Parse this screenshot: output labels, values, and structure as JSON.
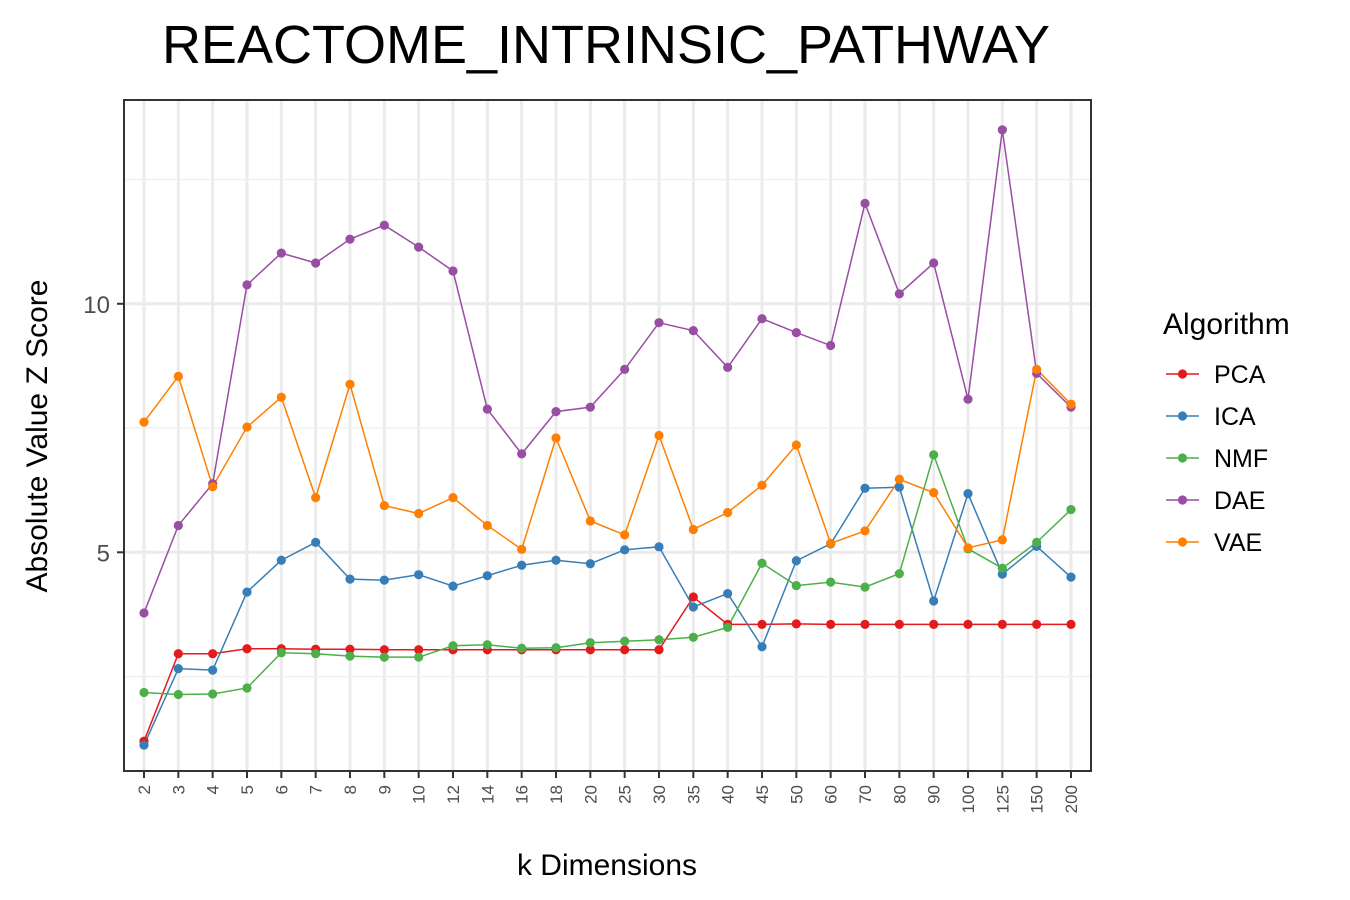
{
  "chart_data": {
    "type": "line",
    "title": "REACTOME_INTRINSIC_PATHWAY",
    "xlabel": "k Dimensions",
    "ylabel": "Absolute Value Z Score",
    "categories": [
      "2",
      "3",
      "4",
      "5",
      "6",
      "7",
      "8",
      "9",
      "10",
      "12",
      "14",
      "16",
      "18",
      "20",
      "25",
      "30",
      "35",
      "40",
      "45",
      "50",
      "60",
      "70",
      "80",
      "90",
      "100",
      "125",
      "150",
      "200"
    ],
    "yticks": [
      5,
      10
    ],
    "ylim": [
      0.6,
      14.1
    ],
    "grid": true,
    "legend_title": "Algorithm",
    "legend_position": "right",
    "series": [
      {
        "name": "PCA",
        "color": "#e41a1c",
        "values": [
          1.2,
          2.96,
          2.96,
          3.06,
          3.06,
          3.05,
          3.05,
          3.04,
          3.04,
          3.04,
          3.04,
          3.04,
          3.04,
          3.04,
          3.04,
          3.04,
          4.1,
          3.55,
          3.55,
          3.56,
          3.55,
          3.55,
          3.55,
          3.55,
          3.55,
          3.55,
          3.55,
          3.55
        ]
      },
      {
        "name": "ICA",
        "color": "#377eb8",
        "values": [
          1.12,
          2.66,
          2.63,
          4.2,
          4.84,
          5.2,
          4.46,
          4.44,
          4.55,
          4.32,
          4.53,
          4.74,
          4.84,
          4.77,
          5.05,
          5.11,
          3.9,
          4.17,
          3.1,
          4.83,
          5.17,
          6.29,
          6.31,
          4.02,
          6.18,
          4.56,
          5.12,
          4.5
        ]
      },
      {
        "name": "NMF",
        "color": "#4daf4a",
        "values": [
          2.18,
          2.14,
          2.15,
          2.27,
          2.98,
          2.96,
          2.91,
          2.89,
          2.89,
          3.12,
          3.14,
          3.07,
          3.08,
          3.18,
          3.21,
          3.24,
          3.29,
          3.49,
          4.78,
          4.33,
          4.4,
          4.3,
          4.57,
          6.96,
          5.07,
          4.68,
          5.2,
          5.86
        ]
      },
      {
        "name": "DAE",
        "color": "#984ea3",
        "values": [
          3.78,
          5.54,
          6.38,
          10.38,
          11.02,
          10.82,
          11.3,
          11.58,
          11.14,
          10.66,
          7.88,
          6.98,
          7.83,
          7.92,
          8.68,
          9.62,
          9.46,
          8.72,
          9.7,
          9.42,
          9.16,
          12.02,
          10.2,
          10.82,
          8.08,
          13.5,
          8.6,
          7.92
        ]
      },
      {
        "name": "VAE",
        "color": "#ff7f00",
        "values": [
          7.62,
          8.54,
          6.32,
          7.52,
          8.12,
          6.1,
          8.38,
          5.94,
          5.78,
          6.1,
          5.54,
          5.06,
          7.3,
          5.63,
          5.35,
          7.35,
          5.46,
          5.8,
          6.35,
          7.16,
          5.18,
          5.43,
          6.47,
          6.2,
          5.09,
          5.25,
          8.68,
          7.98
        ]
      }
    ]
  }
}
